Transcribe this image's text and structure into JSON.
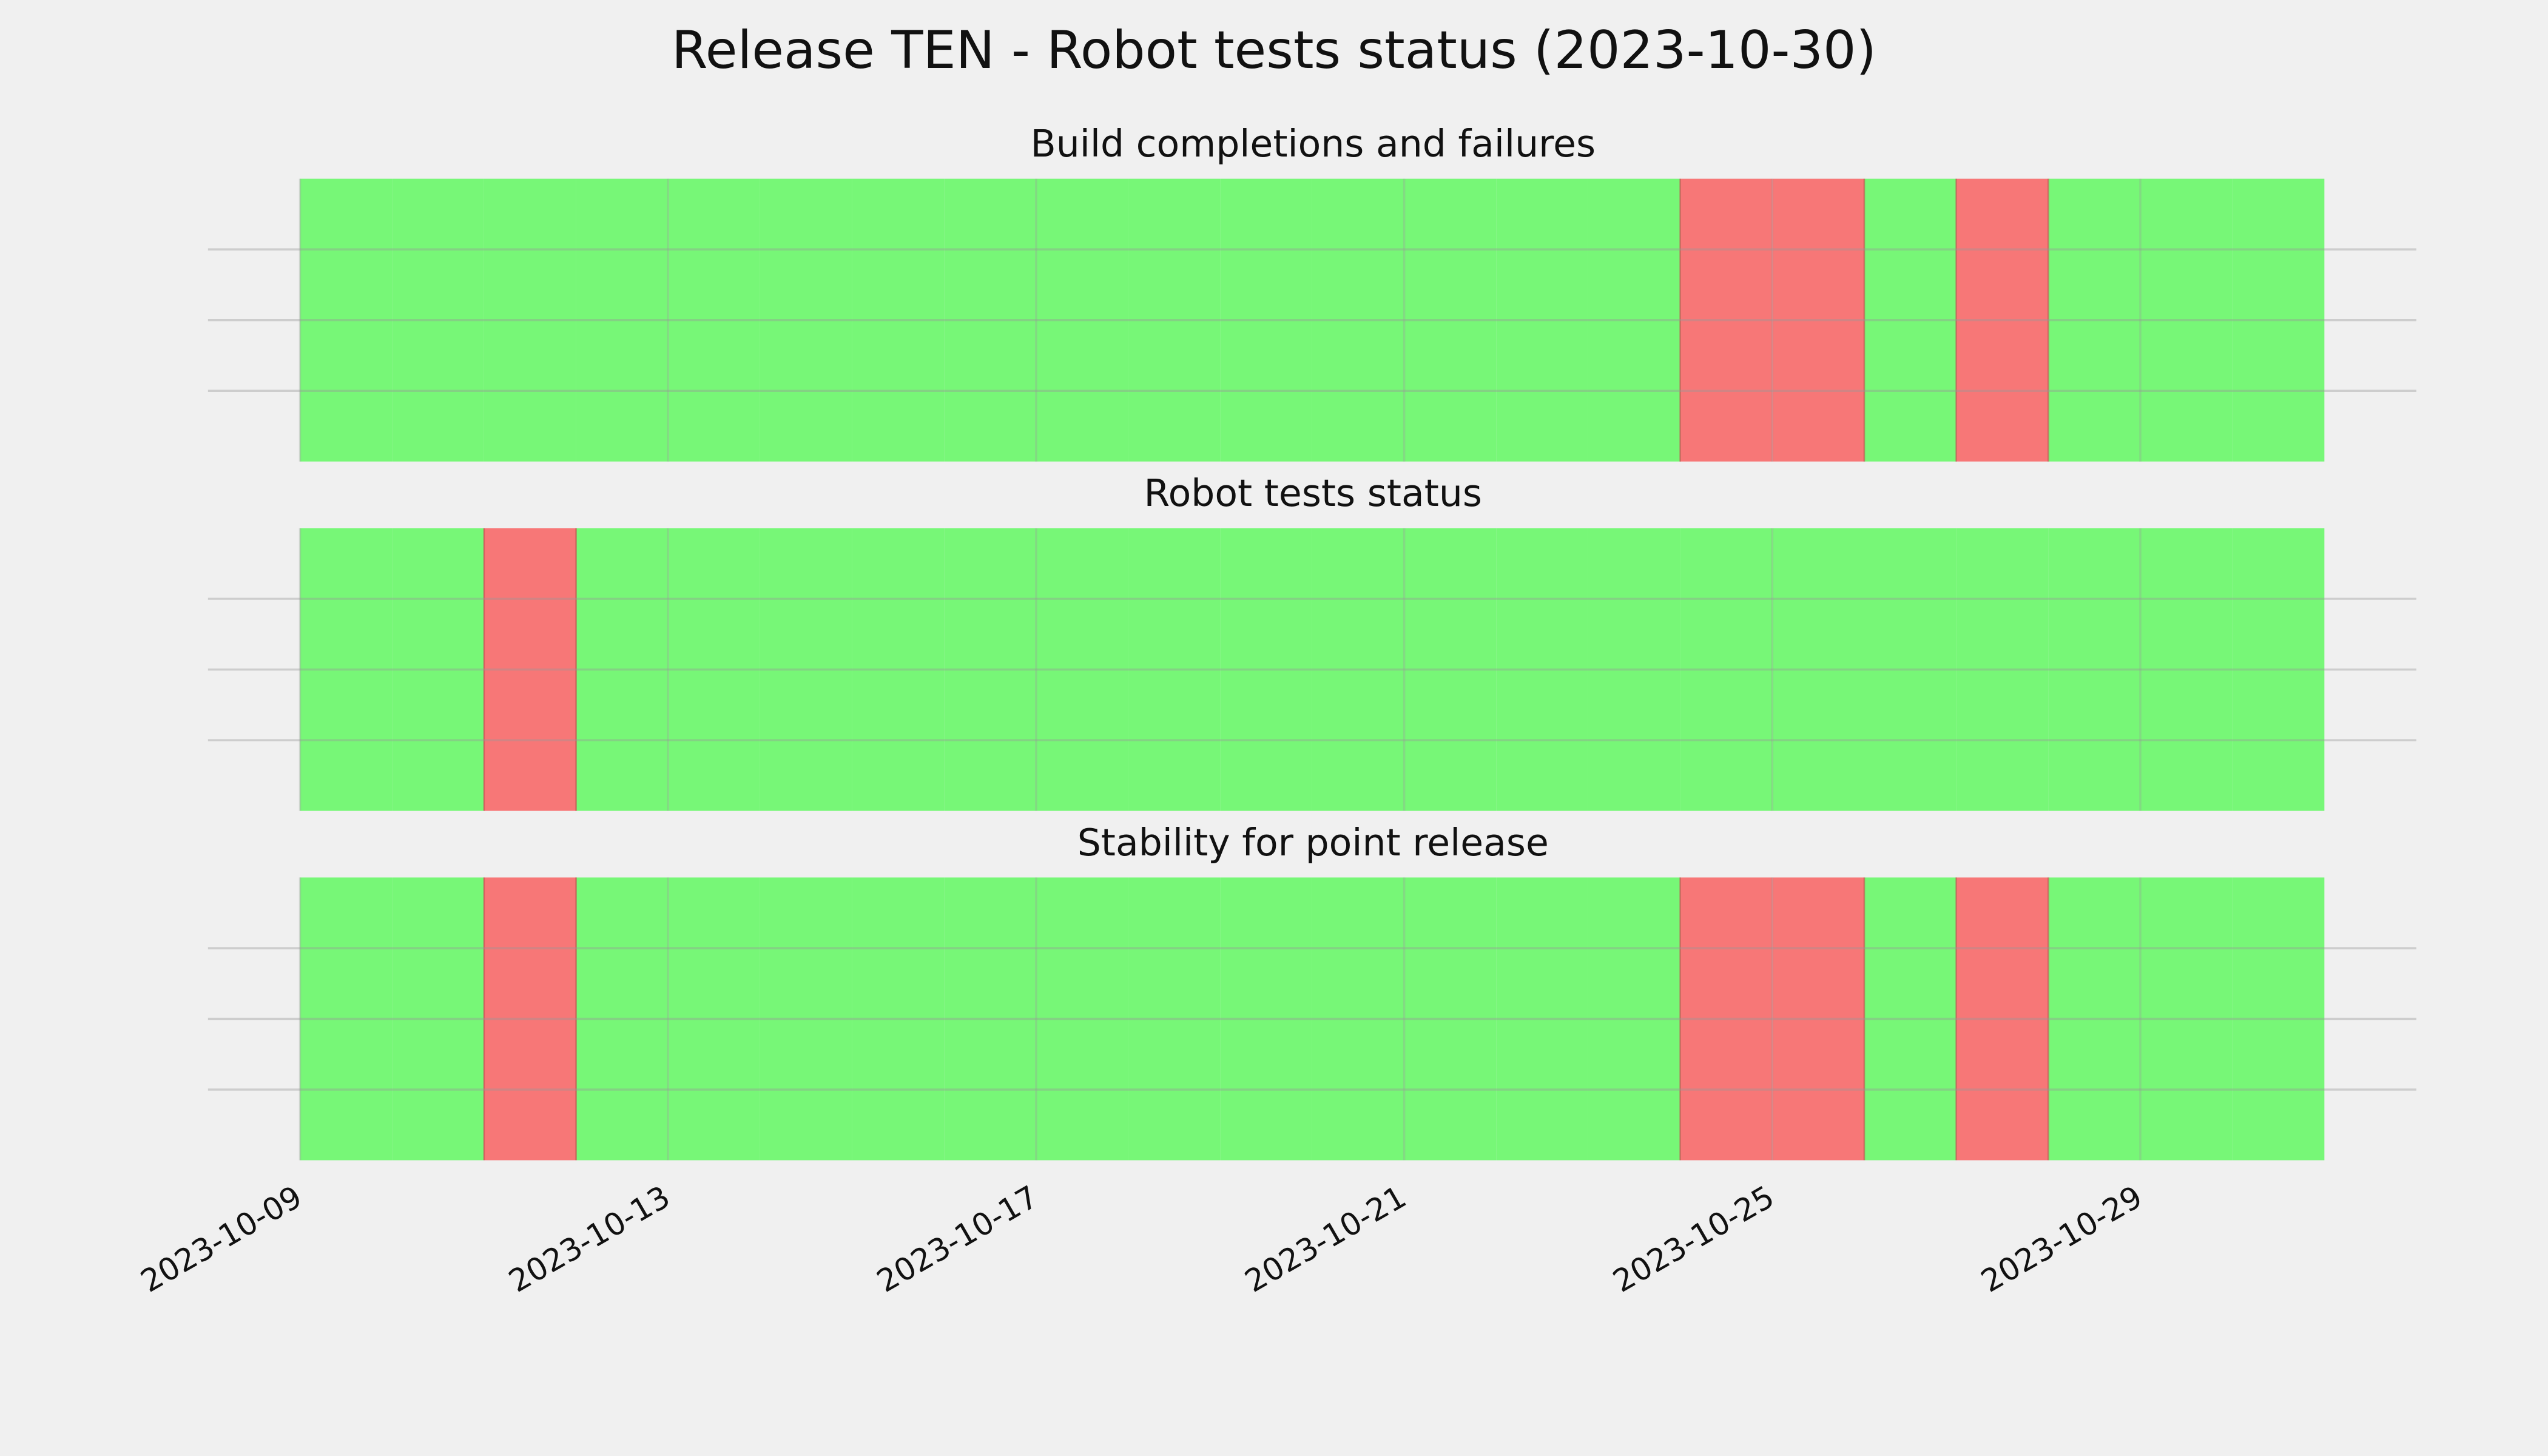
{
  "title": "Release TEN - Robot tests status (2023-10-30)",
  "chart_data": [
    {
      "type": "timeline",
      "title": "Build completions and failures",
      "x": [
        "2023-10-09",
        "2023-10-10",
        "2023-10-11",
        "2023-10-12",
        "2023-10-13",
        "2023-10-14",
        "2023-10-15",
        "2023-10-16",
        "2023-10-17",
        "2023-10-18",
        "2023-10-19",
        "2023-10-20",
        "2023-10-21",
        "2023-10-22",
        "2023-10-23",
        "2023-10-24",
        "2023-10-25",
        "2023-10-26",
        "2023-10-27",
        "2023-10-28",
        "2023-10-29",
        "2023-10-30"
      ],
      "values": [
        1,
        1,
        1,
        1,
        1,
        1,
        1,
        1,
        1,
        1,
        1,
        1,
        1,
        1,
        1,
        1,
        1,
        1,
        1,
        1,
        1,
        1
      ],
      "colors": [
        "#77f777",
        "#77f777",
        "#77f777",
        "#77f777",
        "#77f777",
        "#77f777",
        "#77f777",
        "#77f777",
        "#77f777",
        "#77f777",
        "#77f777",
        "#77f777",
        "#77f777",
        "#77f777",
        "#77f777",
        "#f77777",
        "#f77777",
        "#77f777",
        "#f77777",
        "#77f777",
        "#77f777",
        "#77f777"
      ],
      "xlim": [
        "2023-10-08",
        "2023-11-01"
      ],
      "xticks": [
        "2023-10-09",
        "2023-10-13",
        "2023-10-17",
        "2023-10-21",
        "2023-10-25",
        "2023-10-29"
      ],
      "ylim": [
        0,
        1
      ],
      "yticks": [
        0.25,
        0.5,
        0.75
      ],
      "grid": true,
      "xtick_labels": false
    },
    {
      "type": "timeline",
      "title": "Robot tests status",
      "x": [
        "2023-10-09",
        "2023-10-10",
        "2023-10-11",
        "2023-10-12",
        "2023-10-13",
        "2023-10-14",
        "2023-10-15",
        "2023-10-16",
        "2023-10-17",
        "2023-10-18",
        "2023-10-19",
        "2023-10-20",
        "2023-10-21",
        "2023-10-22",
        "2023-10-23",
        "2023-10-24",
        "2023-10-25",
        "2023-10-26",
        "2023-10-27",
        "2023-10-28",
        "2023-10-29",
        "2023-10-30"
      ],
      "values": [
        1,
        1,
        1,
        1,
        1,
        1,
        1,
        1,
        1,
        1,
        1,
        1,
        1,
        1,
        1,
        1,
        1,
        1,
        1,
        1,
        1,
        1
      ],
      "colors": [
        "#77f777",
        "#77f777",
        "#f77777",
        "#77f777",
        "#77f777",
        "#77f777",
        "#77f777",
        "#77f777",
        "#77f777",
        "#77f777",
        "#77f777",
        "#77f777",
        "#77f777",
        "#77f777",
        "#77f777",
        "#77f777",
        "#77f777",
        "#77f777",
        "#77f777",
        "#77f777",
        "#77f777",
        "#77f777"
      ],
      "xlim": [
        "2023-10-08",
        "2023-11-01"
      ],
      "xticks": [
        "2023-10-09",
        "2023-10-13",
        "2023-10-17",
        "2023-10-21",
        "2023-10-25",
        "2023-10-29"
      ],
      "ylim": [
        0,
        1
      ],
      "yticks": [
        0.25,
        0.5,
        0.75
      ],
      "grid": true,
      "xtick_labels": false
    },
    {
      "type": "timeline",
      "title": "Stability for point release",
      "x": [
        "2023-10-09",
        "2023-10-10",
        "2023-10-11",
        "2023-10-12",
        "2023-10-13",
        "2023-10-14",
        "2023-10-15",
        "2023-10-16",
        "2023-10-17",
        "2023-10-18",
        "2023-10-19",
        "2023-10-20",
        "2023-10-21",
        "2023-10-22",
        "2023-10-23",
        "2023-10-24",
        "2023-10-25",
        "2023-10-26",
        "2023-10-27",
        "2023-10-28",
        "2023-10-29",
        "2023-10-30"
      ],
      "values": [
        1,
        1,
        1,
        1,
        1,
        1,
        1,
        1,
        1,
        1,
        1,
        1,
        1,
        1,
        1,
        1,
        1,
        1,
        1,
        1,
        1,
        1
      ],
      "colors": [
        "#77f777",
        "#77f777",
        "#f77777",
        "#77f777",
        "#77f777",
        "#77f777",
        "#77f777",
        "#77f777",
        "#77f777",
        "#77f777",
        "#77f777",
        "#77f777",
        "#77f777",
        "#77f777",
        "#77f777",
        "#f77777",
        "#f77777",
        "#77f777",
        "#f77777",
        "#77f777",
        "#77f777",
        "#77f777"
      ],
      "xlim": [
        "2023-10-08",
        "2023-11-01"
      ],
      "xticks": [
        "2023-10-09",
        "2023-10-13",
        "2023-10-17",
        "2023-10-21",
        "2023-10-25",
        "2023-10-29"
      ],
      "ylim": [
        0,
        1
      ],
      "yticks": [
        0.25,
        0.5,
        0.75
      ],
      "grid": true,
      "xtick_labels": true
    }
  ]
}
